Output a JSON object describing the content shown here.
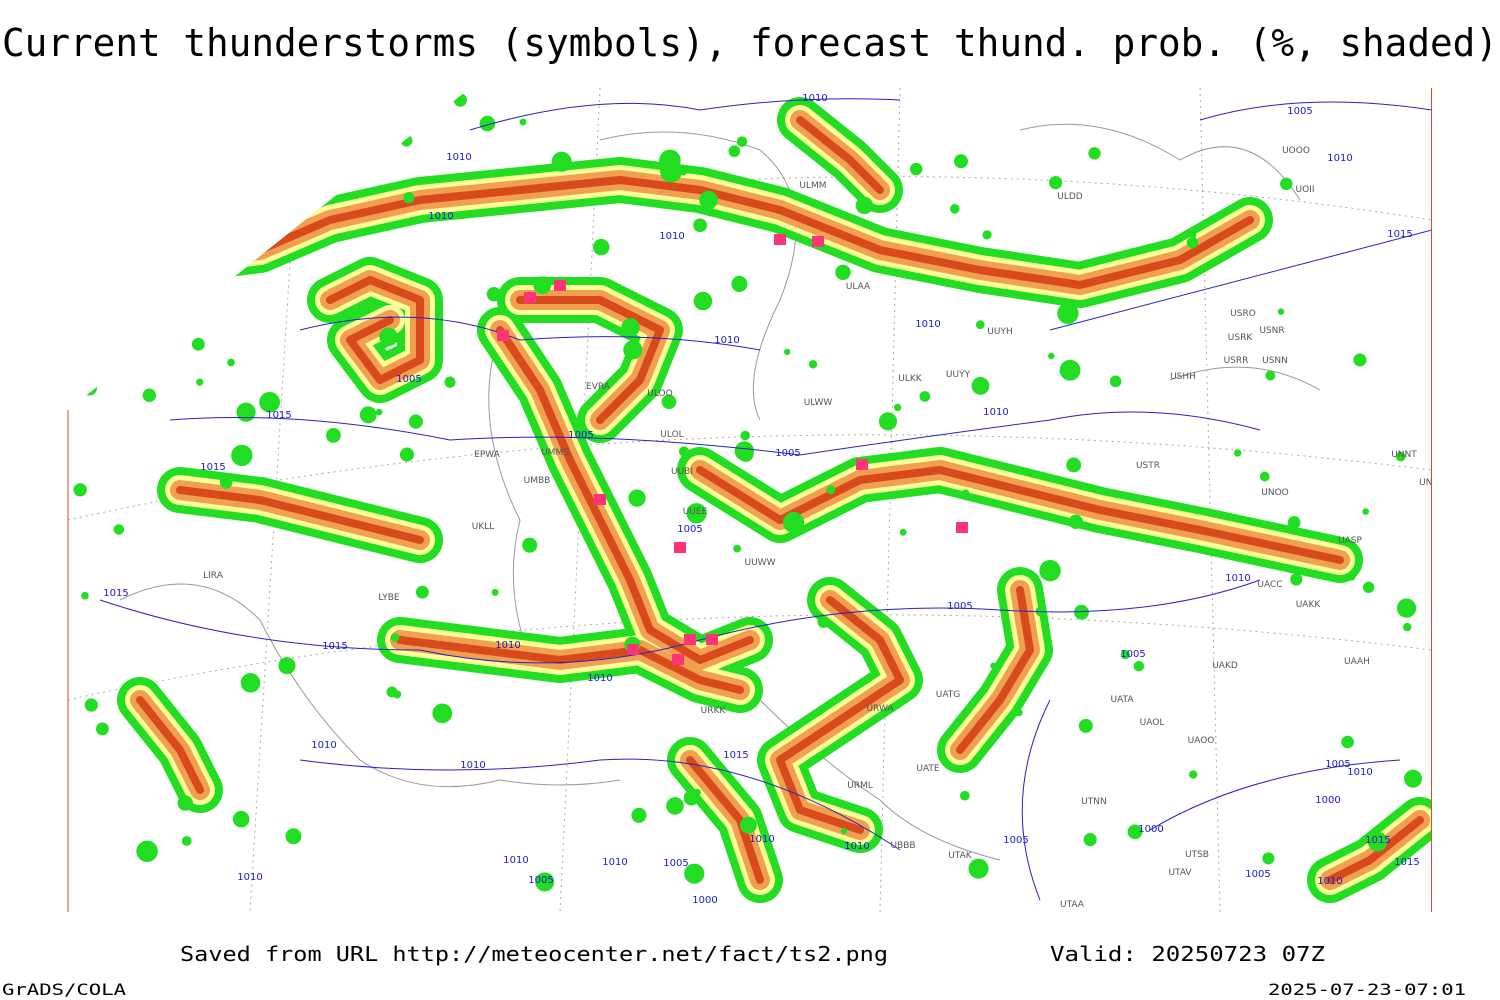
{
  "header": {
    "title": "Current thunderstorms (symbols), forecast thund. prob. (%, shaded)"
  },
  "map": {
    "station_labels": [
      "ULMM",
      "ULDD",
      "UOOO",
      "UOII",
      "ULAA",
      "UUYH",
      "USRO",
      "USNR",
      "USRK",
      "USRR",
      "USNN",
      "USHH",
      "ULKK",
      "UUYY",
      "ULWW",
      "ULOO",
      "ULOL",
      "EVRA",
      "UMMS",
      "EPWA",
      "UMBB",
      "UUBI",
      "UUEE",
      "UUWW",
      "UKLL",
      "LYBE",
      "LIRA",
      "USTR",
      "UNOO",
      "UNNT",
      "UNBB",
      "UASP",
      "UACC",
      "UAKK",
      "UAKD",
      "UAAH",
      "UATA",
      "UAOL",
      "UAOO",
      "UATG",
      "URWA",
      "UATE",
      "URML",
      "UTNN",
      "UBBB",
      "UTAK",
      "UTSB",
      "UTAV",
      "UTAA",
      "URKK"
    ],
    "isobar_labels": [
      "1010",
      "1010",
      "1010",
      "1010",
      "1010",
      "1010",
      "1005",
      "1015",
      "1010",
      "1005",
      "1005",
      "1015",
      "1005",
      "1015",
      "1005",
      "1010",
      "1015",
      "1010",
      "1005",
      "1010",
      "1015",
      "1005",
      "1010",
      "1010",
      "1010",
      "1015",
      "1010",
      "1010",
      "1005",
      "1000",
      "1010",
      "1010",
      "1005",
      "1005",
      "1010",
      "1000",
      "1000",
      "1015",
      "1015",
      "1010",
      "1005",
      "1010",
      "1005"
    ]
  },
  "footer": {
    "source": "Saved from URL http://meteocenter.net/fact/ts2.png",
    "valid": "Valid: 20250723 07Z",
    "software": "GrADS/COLA",
    "timestamp": "2025-07-23-07:01"
  }
}
